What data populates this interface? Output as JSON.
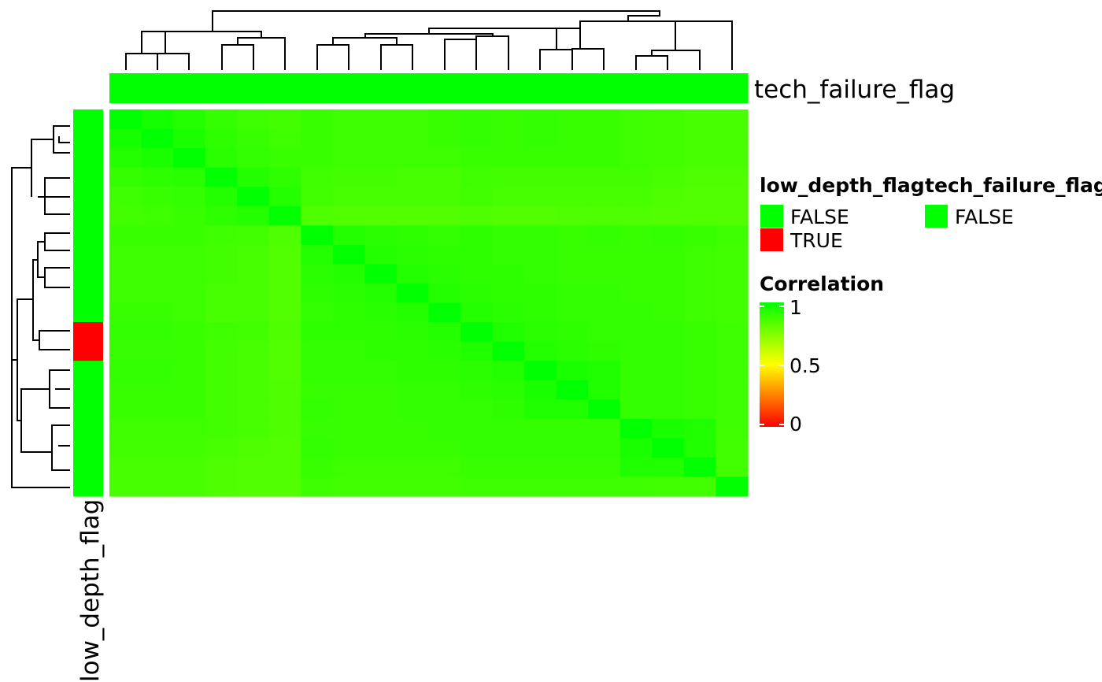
{
  "chart_data": {
    "type": "heatmap",
    "title": "",
    "n_samples": 20,
    "values": [
      [
        1.0,
        0.96,
        0.93,
        0.9,
        0.88,
        0.87,
        0.89,
        0.88,
        0.88,
        0.88,
        0.89,
        0.9,
        0.89,
        0.9,
        0.89,
        0.89,
        0.88,
        0.87,
        0.86,
        0.86
      ],
      [
        0.96,
        1.0,
        0.95,
        0.91,
        0.89,
        0.88,
        0.89,
        0.88,
        0.88,
        0.88,
        0.89,
        0.9,
        0.89,
        0.9,
        0.89,
        0.89,
        0.88,
        0.87,
        0.86,
        0.86
      ],
      [
        0.93,
        0.95,
        1.0,
        0.92,
        0.9,
        0.89,
        0.89,
        0.88,
        0.88,
        0.88,
        0.88,
        0.89,
        0.89,
        0.89,
        0.89,
        0.89,
        0.88,
        0.87,
        0.86,
        0.86
      ],
      [
        0.9,
        0.91,
        0.92,
        1.0,
        0.93,
        0.91,
        0.88,
        0.87,
        0.87,
        0.86,
        0.86,
        0.88,
        0.87,
        0.87,
        0.87,
        0.87,
        0.87,
        0.86,
        0.85,
        0.85
      ],
      [
        0.88,
        0.89,
        0.9,
        0.93,
        1.0,
        0.93,
        0.87,
        0.86,
        0.86,
        0.86,
        0.86,
        0.87,
        0.86,
        0.86,
        0.86,
        0.86,
        0.86,
        0.85,
        0.84,
        0.84
      ],
      [
        0.87,
        0.88,
        0.89,
        0.91,
        0.93,
        1.0,
        0.85,
        0.84,
        0.84,
        0.84,
        0.84,
        0.85,
        0.84,
        0.84,
        0.85,
        0.85,
        0.85,
        0.84,
        0.84,
        0.84
      ],
      [
        0.89,
        0.89,
        0.89,
        0.88,
        0.87,
        0.85,
        1.0,
        0.93,
        0.92,
        0.91,
        0.9,
        0.91,
        0.9,
        0.9,
        0.89,
        0.9,
        0.89,
        0.9,
        0.89,
        0.88
      ],
      [
        0.88,
        0.88,
        0.88,
        0.87,
        0.86,
        0.84,
        0.93,
        1.0,
        0.93,
        0.92,
        0.91,
        0.91,
        0.9,
        0.9,
        0.89,
        0.89,
        0.89,
        0.89,
        0.88,
        0.87
      ],
      [
        0.88,
        0.88,
        0.88,
        0.87,
        0.86,
        0.84,
        0.92,
        0.93,
        1.0,
        0.93,
        0.92,
        0.91,
        0.91,
        0.9,
        0.89,
        0.89,
        0.89,
        0.89,
        0.88,
        0.87
      ],
      [
        0.88,
        0.88,
        0.88,
        0.86,
        0.86,
        0.84,
        0.91,
        0.92,
        0.93,
        1.0,
        0.93,
        0.92,
        0.91,
        0.91,
        0.9,
        0.9,
        0.89,
        0.89,
        0.88,
        0.87
      ],
      [
        0.89,
        0.89,
        0.88,
        0.86,
        0.86,
        0.84,
        0.9,
        0.91,
        0.92,
        0.93,
        1.0,
        0.93,
        0.92,
        0.91,
        0.9,
        0.9,
        0.9,
        0.89,
        0.88,
        0.87
      ],
      [
        0.9,
        0.9,
        0.89,
        0.88,
        0.87,
        0.85,
        0.91,
        0.91,
        0.91,
        0.92,
        0.93,
        1.0,
        0.94,
        0.92,
        0.91,
        0.9,
        0.9,
        0.9,
        0.89,
        0.88
      ],
      [
        0.89,
        0.89,
        0.89,
        0.87,
        0.86,
        0.84,
        0.9,
        0.9,
        0.91,
        0.91,
        0.92,
        0.94,
        1.0,
        0.93,
        0.92,
        0.91,
        0.9,
        0.9,
        0.89,
        0.88
      ],
      [
        0.9,
        0.9,
        0.89,
        0.87,
        0.86,
        0.84,
        0.9,
        0.9,
        0.9,
        0.91,
        0.91,
        0.92,
        0.93,
        1.0,
        0.95,
        0.94,
        0.9,
        0.9,
        0.89,
        0.88
      ],
      [
        0.89,
        0.89,
        0.89,
        0.87,
        0.86,
        0.85,
        0.89,
        0.89,
        0.89,
        0.9,
        0.9,
        0.91,
        0.92,
        0.95,
        1.0,
        0.94,
        0.9,
        0.9,
        0.89,
        0.88
      ],
      [
        0.89,
        0.89,
        0.89,
        0.87,
        0.86,
        0.85,
        0.9,
        0.89,
        0.89,
        0.9,
        0.9,
        0.9,
        0.91,
        0.94,
        0.94,
        1.0,
        0.9,
        0.9,
        0.89,
        0.88
      ],
      [
        0.88,
        0.88,
        0.88,
        0.87,
        0.86,
        0.85,
        0.89,
        0.89,
        0.89,
        0.89,
        0.9,
        0.9,
        0.9,
        0.9,
        0.9,
        0.9,
        1.0,
        0.95,
        0.94,
        0.88
      ],
      [
        0.87,
        0.87,
        0.87,
        0.86,
        0.85,
        0.84,
        0.9,
        0.89,
        0.89,
        0.89,
        0.89,
        0.9,
        0.9,
        0.9,
        0.9,
        0.9,
        0.95,
        1.0,
        0.94,
        0.87
      ],
      [
        0.86,
        0.86,
        0.86,
        0.85,
        0.84,
        0.84,
        0.89,
        0.88,
        0.88,
        0.88,
        0.88,
        0.89,
        0.89,
        0.89,
        0.89,
        0.89,
        0.94,
        0.94,
        1.0,
        0.87
      ],
      [
        0.86,
        0.86,
        0.86,
        0.85,
        0.84,
        0.84,
        0.88,
        0.87,
        0.87,
        0.87,
        0.87,
        0.88,
        0.88,
        0.88,
        0.88,
        0.88,
        0.88,
        0.87,
        0.87,
        1.0
      ]
    ],
    "column_annotation": {
      "name": "tech_failure_flag",
      "values": [
        "FALSE",
        "FALSE",
        "FALSE",
        "FALSE",
        "FALSE",
        "FALSE",
        "FALSE",
        "FALSE",
        "FALSE",
        "FALSE",
        "FALSE",
        "FALSE",
        "FALSE",
        "FALSE",
        "FALSE",
        "FALSE",
        "FALSE",
        "FALSE",
        "FALSE",
        "FALSE"
      ]
    },
    "row_annotation": {
      "name": "low_depth_flag",
      "values": [
        "FALSE",
        "FALSE",
        "FALSE",
        "FALSE",
        "FALSE",
        "FALSE",
        "FALSE",
        "FALSE",
        "FALSE",
        "FALSE",
        "FALSE",
        "TRUE",
        "TRUE",
        "FALSE",
        "FALSE",
        "FALSE",
        "FALSE",
        "FALSE",
        "FALSE",
        "FALSE"
      ]
    },
    "legends": {
      "low_depth_flag": {
        "title": "low_depth_flag",
        "entries": [
          {
            "label": "FALSE",
            "color": "#00ff00"
          },
          {
            "label": "TRUE",
            "color": "#ff0000"
          }
        ]
      },
      "tech_failure_flag": {
        "title": "tech_failure_flag",
        "entries": [
          {
            "label": "FALSE",
            "color": "#00ff00"
          }
        ]
      },
      "correlation": {
        "title": "Correlation",
        "range": [
          0,
          1
        ],
        "ticks": [
          "1",
          "0.5",
          "0"
        ],
        "tick_values": [
          1,
          0.5,
          0
        ],
        "colors": {
          "low": "#ff0000",
          "mid": "#ffff00",
          "high": "#00ff00"
        }
      }
    },
    "dendrograms": {
      "column": true,
      "row": true
    }
  }
}
